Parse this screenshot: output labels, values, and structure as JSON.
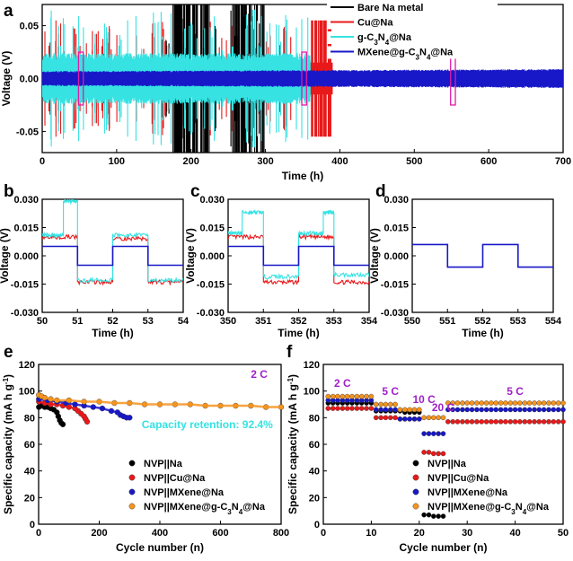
{
  "colors": {
    "bare": "#000000",
    "cu": "#e8191a",
    "gcn": "#36e2e2",
    "mxene": "#1818c8",
    "nvp_mx_gcn": "#f5941f",
    "highlight": "#e01aa6",
    "rate_label": "#a020c8"
  },
  "chart_data": [
    {
      "id": "a",
      "panel_label": "a",
      "type": "line",
      "xlabel": "Time (h)",
      "ylabel": "Voltage (V)",
      "xlim": [
        0,
        700
      ],
      "ylim": [
        -0.07,
        0.07
      ],
      "xticks": [
        "0",
        "100",
        "200",
        "300",
        "400",
        "500",
        "600",
        "700"
      ],
      "yticks": [
        "0.05",
        "0.00",
        "-0.05"
      ],
      "legend_position": "top-right",
      "legend": [
        "Bare Na metal",
        "Cu@Na",
        "g-C3N4@Na",
        "MXene@g-C3N4@Na"
      ],
      "highlight_windows_h": [
        [
          50,
          54
        ],
        [
          350,
          354
        ],
        [
          550,
          554
        ]
      ],
      "series": [
        {
          "name": "Bare Na metal",
          "color_key": "bare",
          "x_range_h": [
            160,
            300
          ],
          "typical_amplitude_V": 0.015,
          "max_amplitude_V": 0.07
        },
        {
          "name": "Cu@Na",
          "color_key": "cu",
          "x_range_h": [
            0,
            390
          ],
          "typical_amplitude_V": 0.012,
          "max_amplitude_V": 0.055
        },
        {
          "name": "g-C3N4@Na",
          "color_key": "gcn",
          "x_range_h": [
            0,
            360
          ],
          "typical_amplitude_V": 0.02,
          "max_amplitude_V": 0.065
        },
        {
          "name": "MXene@g-C3N4@Na",
          "color_key": "mxene",
          "x_range_h": [
            0,
            700
          ],
          "typical_amplitude_V": 0.006,
          "max_amplitude_V": 0.008
        }
      ]
    },
    {
      "id": "b",
      "panel_label": "b",
      "type": "line",
      "xlabel": "Time (h)",
      "ylabel": "Voltage (V)",
      "xlim": [
        50,
        54
      ],
      "ylim": [
        -0.03,
        0.03
      ],
      "xticks": [
        "50",
        "51",
        "52",
        "53",
        "54"
      ],
      "yticks": [
        "0.030",
        "0.015",
        "0.000",
        "-0.015",
        "-0.030"
      ],
      "series": [
        {
          "name": "Cu@Na",
          "color_key": "cu",
          "x": [
            50,
            51,
            51,
            52,
            52,
            53,
            53,
            54
          ],
          "y": [
            0.01,
            0.01,
            -0.014,
            -0.014,
            0.009,
            0.009,
            -0.014,
            -0.014
          ]
        },
        {
          "name": "g-C3N4@Na",
          "color_key": "gcn",
          "x": [
            50,
            50.6,
            50.6,
            51,
            51,
            52,
            52,
            53,
            53,
            54
          ],
          "y": [
            0.011,
            0.011,
            0.029,
            0.029,
            -0.013,
            -0.013,
            0.011,
            0.011,
            -0.013,
            -0.013
          ]
        },
        {
          "name": "MXene@g-C3N4@Na",
          "color_key": "mxene",
          "x": [
            50,
            51,
            51,
            52,
            52,
            53,
            53,
            54
          ],
          "y": [
            0.005,
            0.005,
            -0.005,
            -0.005,
            0.005,
            0.005,
            -0.005,
            -0.005
          ]
        }
      ]
    },
    {
      "id": "c",
      "panel_label": "c",
      "type": "line",
      "xlabel": "Time (h)",
      "ylabel": "Voltage (V)",
      "xlim": [
        350,
        354
      ],
      "ylim": [
        -0.03,
        0.03
      ],
      "xticks": [
        "350",
        "351",
        "352",
        "353",
        "354"
      ],
      "yticks": [
        "0.030",
        "0.015",
        "0.000",
        "-0.015",
        "-0.030"
      ],
      "series": [
        {
          "name": "Cu@Na",
          "color_key": "cu",
          "x": [
            350,
            351,
            351,
            352,
            352,
            353,
            353,
            354
          ],
          "y": [
            0.01,
            0.01,
            -0.014,
            -0.014,
            0.01,
            0.01,
            -0.014,
            -0.014
          ]
        },
        {
          "name": "g-C3N4@Na",
          "color_key": "gcn",
          "x": [
            350,
            350.4,
            350.4,
            351,
            351,
            352,
            352,
            352.7,
            352.7,
            353,
            353,
            354
          ],
          "y": [
            0.012,
            0.012,
            0.023,
            0.023,
            -0.011,
            -0.011,
            0.012,
            0.012,
            0.023,
            0.023,
            -0.01,
            -0.01
          ]
        },
        {
          "name": "MXene@g-C3N4@Na",
          "color_key": "mxene",
          "x": [
            350,
            351,
            351,
            352,
            352,
            353,
            353,
            354
          ],
          "y": [
            0.005,
            0.005,
            -0.005,
            -0.005,
            0.005,
            0.005,
            -0.005,
            -0.005
          ]
        }
      ]
    },
    {
      "id": "d",
      "panel_label": "d",
      "type": "line",
      "xlabel": "Time (h)",
      "ylabel": "Voltage (V)",
      "xlim": [
        550,
        554
      ],
      "ylim": [
        -0.03,
        0.03
      ],
      "xticks": [
        "550",
        "551",
        "552",
        "553",
        "554"
      ],
      "yticks": [
        "0.030",
        "0.015",
        "0.000",
        "-0.015",
        "-0.030"
      ],
      "series": [
        {
          "name": "MXene@g-C3N4@Na",
          "color_key": "mxene",
          "x": [
            550,
            551,
            551,
            552,
            552,
            553,
            553,
            554
          ],
          "y": [
            0.006,
            0.006,
            -0.006,
            -0.006,
            0.006,
            0.006,
            -0.006,
            -0.006
          ]
        }
      ]
    },
    {
      "id": "e",
      "panel_label": "e",
      "type": "scatter",
      "xlabel": "Cycle number (n)",
      "ylabel": "Specific capacity (mA h g",
      "ylabel_sup": "-1",
      "ylabel_end": ")",
      "xlim": [
        0,
        800
      ],
      "ylim": [
        0,
        120
      ],
      "xticks": [
        "0",
        "200",
        "400",
        "600",
        "800"
      ],
      "yticks": [
        "0",
        "20",
        "40",
        "60",
        "80",
        "100",
        "120"
      ],
      "annotations": [
        "2 C",
        "Capacity retention: 92.4%"
      ],
      "legend_position": "bottom-center",
      "legend": [
        "NVP||Na",
        "NVP||Cu@Na",
        "NVP||MXene@Na",
        "NVP||MXene@g-C3N4@Na"
      ],
      "series": [
        {
          "name": "NVP||Na",
          "color_key": "bare",
          "x": [
            1,
            10,
            20,
            30,
            40,
            50,
            60,
            65,
            70,
            75,
            80
          ],
          "y": [
            88,
            89,
            88,
            88,
            87,
            86,
            84,
            81,
            78,
            76,
            75
          ]
        },
        {
          "name": "NVP||Cu@Na",
          "color_key": "cu",
          "x": [
            1,
            20,
            40,
            60,
            80,
            100,
            120,
            130,
            140,
            150,
            155,
            160
          ],
          "y": [
            92,
            91,
            90,
            90,
            89,
            88,
            87,
            85,
            83,
            81,
            79,
            77
          ]
        },
        {
          "name": "NVP||MXene@Na",
          "color_key": "mxene",
          "x": [
            1,
            30,
            60,
            90,
            120,
            150,
            180,
            210,
            240,
            260,
            270,
            280,
            290,
            300
          ],
          "y": [
            94,
            93,
            92,
            91,
            90,
            89,
            88,
            87,
            85,
            84,
            82,
            81,
            80,
            80
          ]
        },
        {
          "name": "NVP||MXene@g-C3N4@Na",
          "color_key": "nvp_mx_gcn",
          "x": [
            1,
            10,
            20,
            40,
            60,
            100,
            150,
            200,
            250,
            300,
            350,
            400,
            450,
            500,
            550,
            600,
            650,
            700,
            750,
            800
          ],
          "y": [
            97,
            96,
            95,
            94,
            93,
            93,
            92,
            92,
            91,
            91,
            90,
            90,
            90,
            90,
            89,
            89,
            89,
            89,
            88,
            88
          ]
        }
      ]
    },
    {
      "id": "f",
      "panel_label": "f",
      "type": "scatter",
      "xlabel": "Cycle number (n)",
      "ylabel": "Specific capacity (mA h g",
      "ylabel_sup": "-1",
      "ylabel_end": ")",
      "xlim": [
        0,
        50
      ],
      "ylim": [
        0,
        120
      ],
      "xticks": [
        "0",
        "10",
        "20",
        "30",
        "40",
        "50"
      ],
      "yticks": [
        "0",
        "20",
        "40",
        "60",
        "80",
        "100",
        "120"
      ],
      "rate_labels": [
        "2 C",
        "5 C",
        "10 C",
        "20 C",
        "5 C"
      ],
      "legend_position": "bottom-center",
      "legend": [
        "NVP||Na",
        "NVP||Cu@Na",
        "NVP||MXene@Na",
        "NVP||MXene@g-C3N4@Na"
      ],
      "series": [
        {
          "name": "NVP||Na",
          "color_key": "bare",
          "x": [
            1,
            2,
            3,
            4,
            5,
            6,
            7,
            8,
            9,
            10,
            11,
            12,
            13,
            14,
            15,
            16,
            17,
            18,
            19,
            20,
            21,
            22,
            23,
            24,
            25
          ],
          "y": [
            91,
            91,
            91,
            91,
            91,
            91,
            91,
            91,
            91,
            91,
            85,
            85,
            85,
            85,
            85,
            85,
            84,
            84,
            84,
            84,
            7,
            7,
            6,
            6,
            6
          ]
        },
        {
          "name": "NVP||Cu@Na",
          "color_key": "cu",
          "x": [
            1,
            2,
            3,
            4,
            5,
            6,
            7,
            8,
            9,
            10,
            11,
            12,
            13,
            14,
            15,
            16,
            17,
            18,
            19,
            20,
            21,
            22,
            23,
            24,
            25,
            26,
            27,
            28,
            29,
            30,
            31,
            32,
            33,
            34,
            35,
            36,
            37,
            38,
            39,
            40,
            41,
            42,
            43,
            44,
            45,
            46,
            47,
            48,
            49,
            50
          ],
          "y": [
            87,
            87,
            87,
            87,
            87,
            87,
            87,
            87,
            87,
            87,
            80,
            80,
            80,
            80,
            80,
            79,
            79,
            79,
            79,
            79,
            54,
            54,
            53,
            53,
            53,
            77,
            77,
            77,
            77,
            77,
            77,
            77,
            77,
            77,
            77,
            77,
            77,
            77,
            77,
            77,
            77,
            77,
            77,
            77,
            77,
            77,
            77,
            77,
            77,
            77
          ]
        },
        {
          "name": "NVP||MXene@Na",
          "color_key": "mxene",
          "x": [
            1,
            2,
            3,
            4,
            5,
            6,
            7,
            8,
            9,
            10,
            11,
            12,
            13,
            14,
            15,
            16,
            17,
            18,
            19,
            20,
            21,
            22,
            23,
            24,
            25,
            26,
            27,
            28,
            29,
            30,
            31,
            32,
            33,
            34,
            35,
            36,
            37,
            38,
            39,
            40,
            41,
            42,
            43,
            44,
            45,
            46,
            47,
            48,
            49,
            50
          ],
          "y": [
            93,
            93,
            93,
            93,
            93,
            93,
            93,
            93,
            93,
            93,
            86,
            86,
            86,
            86,
            86,
            79,
            79,
            79,
            79,
            79,
            68,
            68,
            68,
            68,
            68,
            86,
            86,
            86,
            86,
            86,
            86,
            86,
            86,
            86,
            86,
            86,
            86,
            86,
            86,
            86,
            86,
            86,
            86,
            86,
            86,
            86,
            86,
            86,
            86,
            86
          ]
        },
        {
          "name": "NVP||MXene@g-C3N4@Na",
          "color_key": "nvp_mx_gcn",
          "x": [
            1,
            2,
            3,
            4,
            5,
            6,
            7,
            8,
            9,
            10,
            11,
            12,
            13,
            14,
            15,
            16,
            17,
            18,
            19,
            20,
            21,
            22,
            23,
            24,
            25,
            26,
            27,
            28,
            29,
            30,
            31,
            32,
            33,
            34,
            35,
            36,
            37,
            38,
            39,
            40,
            41,
            42,
            43,
            44,
            45,
            46,
            47,
            48,
            49,
            50
          ],
          "y": [
            96,
            96,
            96,
            96,
            96,
            96,
            96,
            96,
            96,
            96,
            90,
            90,
            90,
            90,
            90,
            86,
            86,
            86,
            86,
            86,
            80,
            80,
            80,
            80,
            80,
            91,
            91,
            91,
            91,
            91,
            91,
            91,
            91,
            91,
            91,
            91,
            91,
            91,
            91,
            91,
            91,
            91,
            91,
            91,
            91,
            91,
            91,
            91,
            91,
            91
          ]
        }
      ]
    }
  ]
}
